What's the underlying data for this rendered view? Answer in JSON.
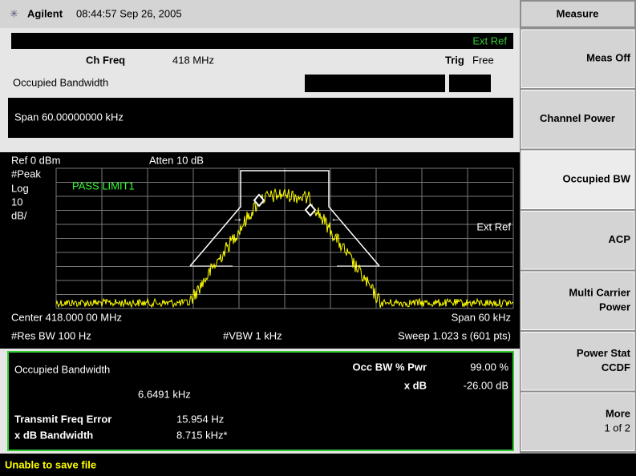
{
  "header": {
    "brand": "Agilent",
    "datetime": "08:44:57  Sep 26, 2005"
  },
  "settings": {
    "ext_ref": "Ext Ref",
    "ch_freq_label": "Ch Freq",
    "ch_freq_value": "418 MHz",
    "trig_label": "Trig",
    "trig_value": "Free",
    "measurement": "Occupied Bandwidth",
    "span": "Span 60.00000000 kHz"
  },
  "graph": {
    "ref": "Ref 0 dBm",
    "atten": "Atten 10 dB",
    "left_labels": [
      "#Peak",
      "Log",
      "10",
      "dB/"
    ],
    "limit_status": "PASS LIMIT1",
    "ext_ref": "Ext Ref",
    "center": "Center 418.000 00 MHz",
    "span": "Span 60 kHz",
    "res_bw": "#Res BW 100 Hz",
    "vbw": "#VBW 1 kHz",
    "sweep": "Sweep 1.023 s (601 pts)"
  },
  "results": {
    "title": "Occupied Bandwidth",
    "value": "6.6491 kHz",
    "occ_bw_pwr_label": "Occ BW % Pwr",
    "occ_bw_pwr_value": "99.00 %",
    "x_db_label": "x dB",
    "x_db_value": "-26.00 dB",
    "freq_error_label": "Transmit Freq Error",
    "freq_error_value": "15.954 Hz",
    "xdb_bw_label": "x dB Bandwidth",
    "xdb_bw_value": "8.715 kHz*"
  },
  "softkeys": {
    "title": "Measure",
    "buttons": [
      [
        "Meas Off"
      ],
      [
        "Channel Power"
      ],
      [
        "Occupied BW"
      ],
      [
        "ACP"
      ],
      [
        "Multi Carrier",
        "Power"
      ],
      [
        "Power Stat",
        "CCDF"
      ],
      [
        "More",
        "1 of 2"
      ]
    ]
  },
  "status": "Unable to save file"
}
